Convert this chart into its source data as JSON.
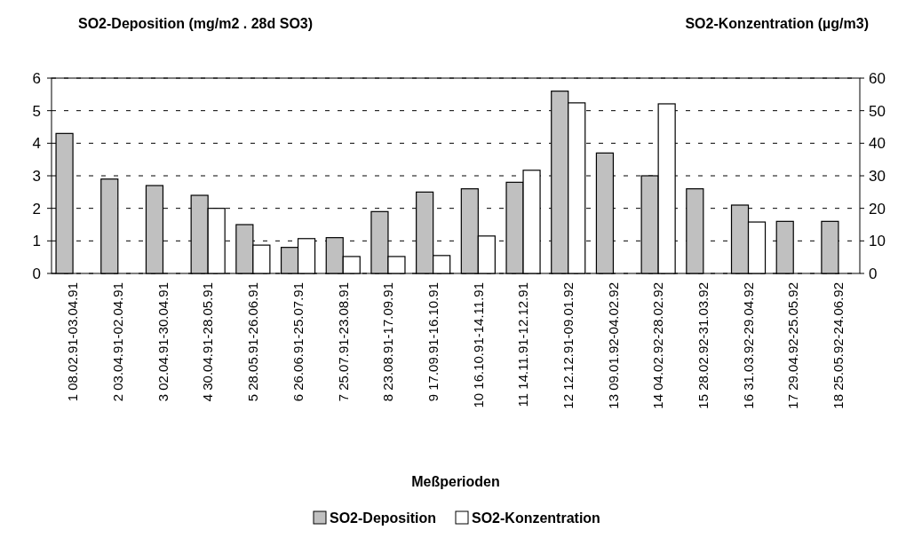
{
  "chart_data": {
    "type": "bar",
    "ylabel": "SO2-Deposition (mg/m2 . 28d SO3)",
    "y2label": "SO2-Konzentration (µg/m3)",
    "xlabel": "Meßperioden",
    "categories": [
      "1 08.02.91-03.04.91",
      "2 03.04.91-02.04.91",
      "3 02.04.91-30.04.91",
      "4 30.04.91-28.05.91",
      "5 28.05.91-26.06.91",
      "6 26.06.91-25.07.91",
      "7 25.07.91-23.08.91",
      "8 23.08.91-17.09.91",
      "9 17.09.91-16.10.91",
      "10 16.10.91-14.11.91",
      "11 14.11.91-12.12.91",
      "12 12.12.91-09.01.92",
      "13 09.01.92-04.02.92",
      "14 04.02.92-28.02.92",
      "15 28.02.92-31.03.92",
      "16 31.03.92-29.04.92",
      "17 29.04.92-25.05.92",
      "18 25.05.92-24.06.92"
    ],
    "series": [
      {
        "name": "SO2-Deposition",
        "color": "#c0c0c0",
        "values": [
          4.3,
          2.9,
          2.7,
          2.4,
          1.5,
          0.8,
          1.1,
          1.9,
          2.5,
          2.6,
          2.8,
          5.6,
          3.7,
          3.0,
          2.6,
          2.1,
          1.6,
          1.6
        ]
      },
      {
        "name": "SO2-Konzentration",
        "color": "#ffffff",
        "axis": "y2",
        "values": [
          null,
          null,
          null,
          20,
          8.7,
          10.7,
          5.2,
          5.2,
          5.5,
          11.5,
          31.7,
          52.4,
          null,
          52.1,
          null,
          15.8,
          null,
          null
        ]
      }
    ],
    "ylim": [
      0,
      6
    ],
    "yticks": [
      0,
      1,
      2,
      3,
      4,
      5,
      6
    ],
    "y2lim": [
      0,
      60
    ],
    "y2ticks": [
      0,
      10,
      20,
      30,
      40,
      50,
      60
    ],
    "grid": "y",
    "legend": "bottom"
  }
}
